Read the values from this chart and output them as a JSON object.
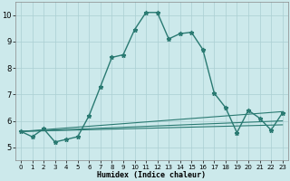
{
  "xlabel": "Humidex (Indice chaleur)",
  "xlim": [
    -0.5,
    23.5
  ],
  "ylim": [
    4.5,
    10.5
  ],
  "xticks": [
    0,
    1,
    2,
    3,
    4,
    5,
    6,
    7,
    8,
    9,
    10,
    11,
    12,
    13,
    14,
    15,
    16,
    17,
    18,
    19,
    20,
    21,
    22,
    23
  ],
  "yticks": [
    5,
    6,
    7,
    8,
    9,
    10
  ],
  "bg_color": "#cce9eb",
  "grid_color": "#aacfd2",
  "line_color": "#2a7a72",
  "main_line": {
    "x": [
      0,
      1,
      2,
      3,
      4,
      5,
      6,
      7,
      8,
      9,
      10,
      11,
      12,
      13,
      14,
      15,
      16,
      17,
      18,
      19,
      20,
      21,
      22,
      23
    ],
    "y": [
      5.6,
      5.4,
      5.7,
      5.2,
      5.3,
      5.4,
      6.2,
      7.3,
      8.4,
      8.5,
      9.45,
      10.1,
      10.1,
      9.1,
      9.3,
      9.35,
      8.7,
      7.05,
      6.5,
      5.55,
      6.4,
      6.1,
      5.65,
      6.3
    ]
  },
  "flat_lines": [
    {
      "x": [
        0,
        23
      ],
      "y": [
        5.6,
        6.35
      ]
    },
    {
      "x": [
        0,
        23
      ],
      "y": [
        5.6,
        6.0
      ]
    },
    {
      "x": [
        0,
        23
      ],
      "y": [
        5.6,
        5.85
      ]
    }
  ]
}
